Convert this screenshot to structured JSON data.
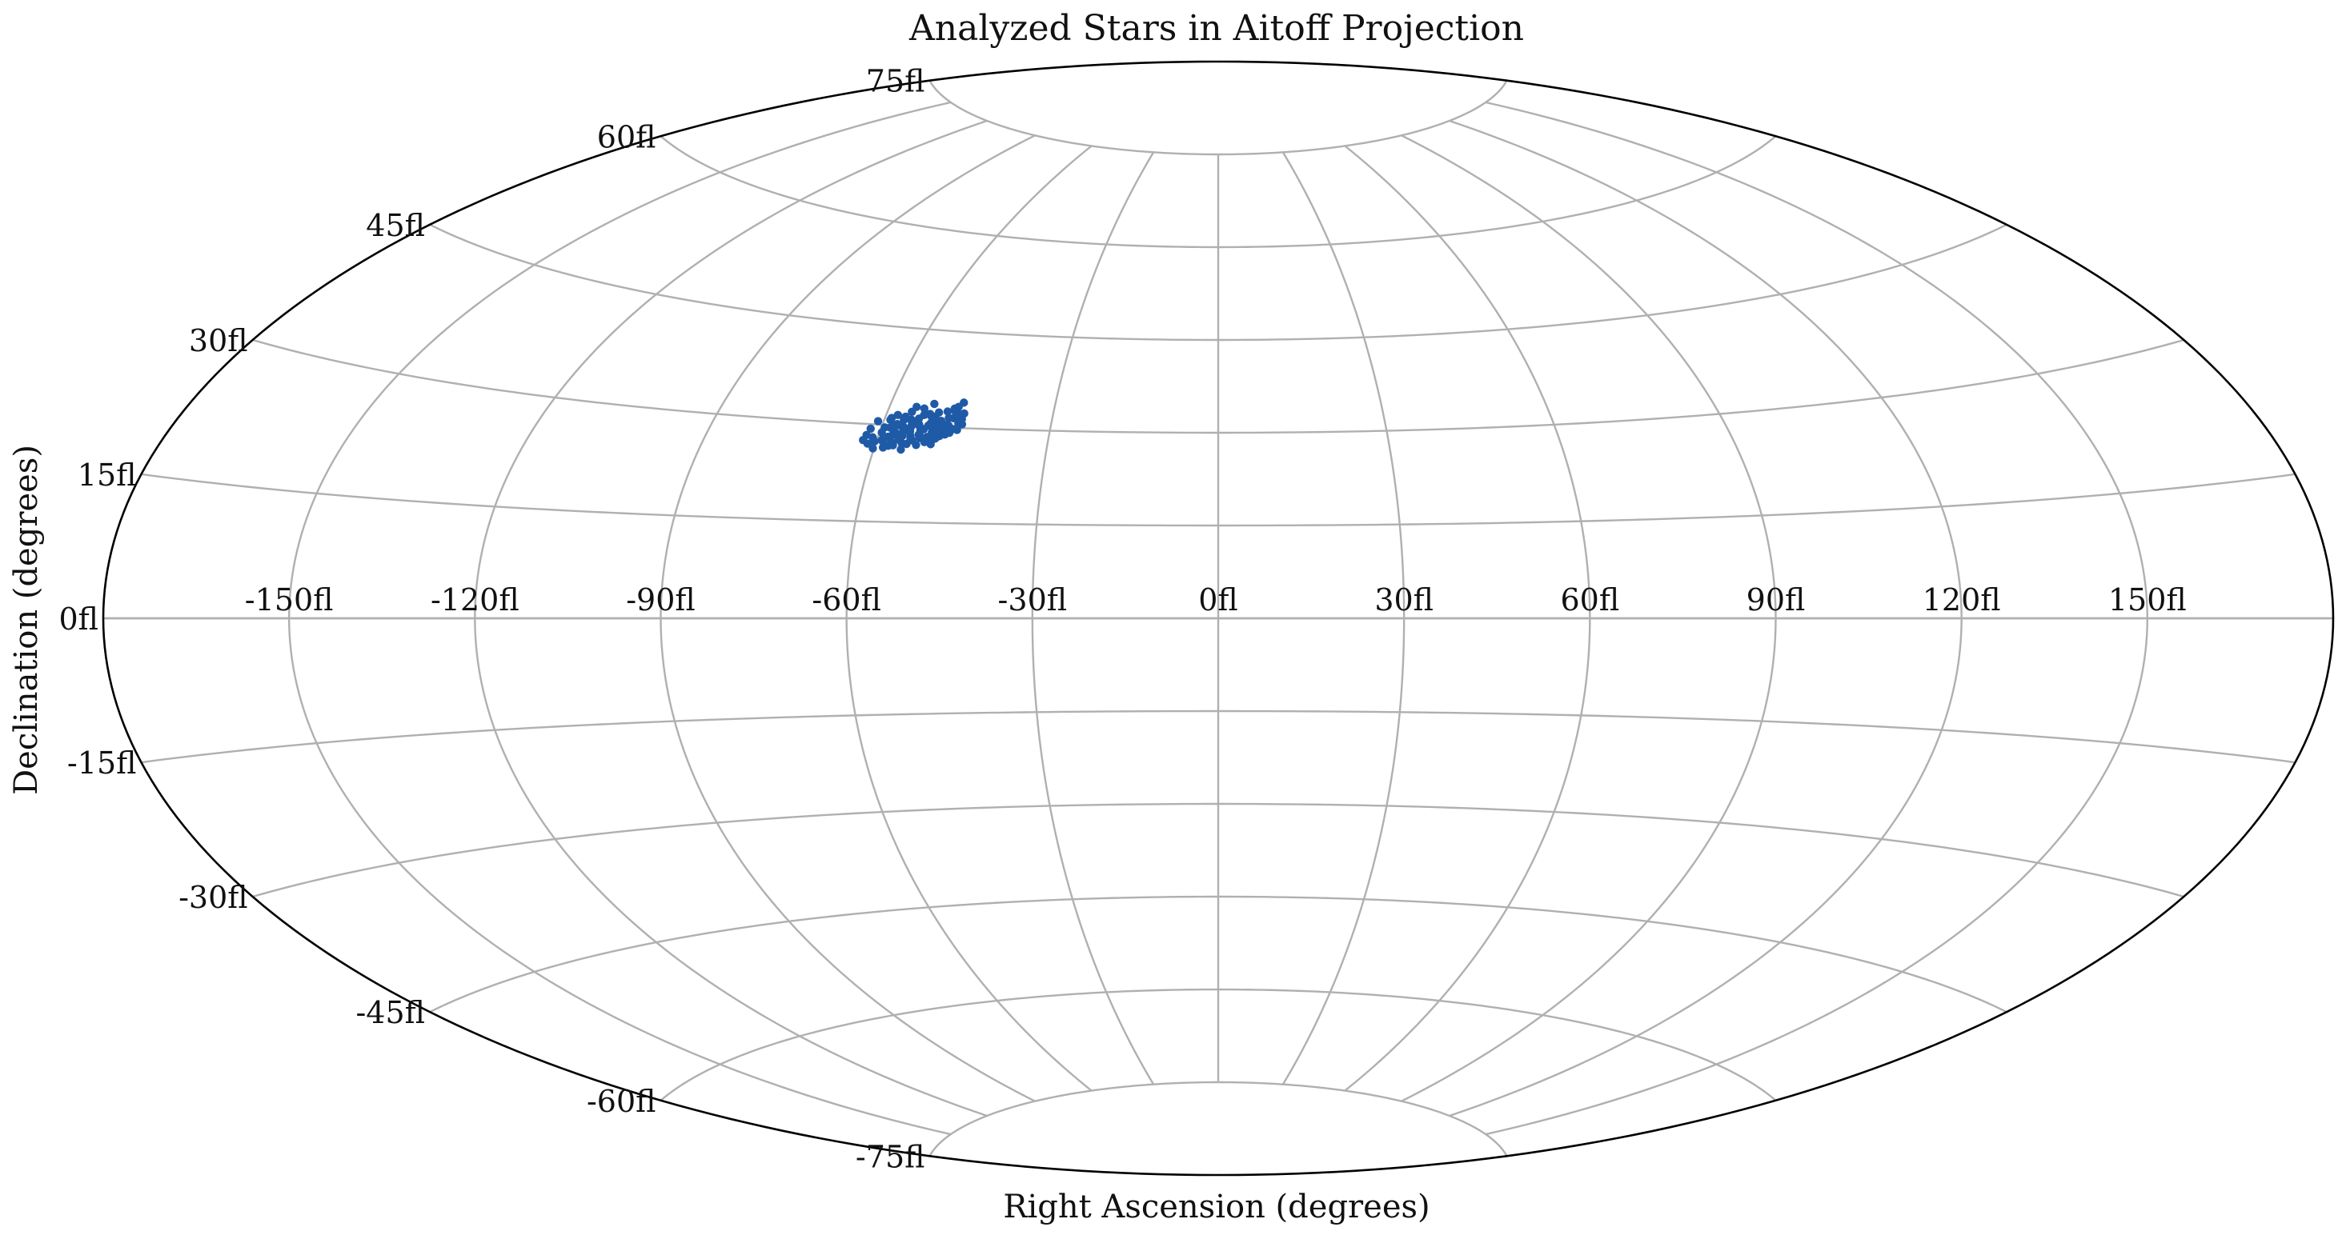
{
  "chart_data": {
    "type": "scatter",
    "projection": "aitoff",
    "title": "Analyzed Stars in Aitoff Projection",
    "xlabel": "Right Ascension (degrees)",
    "ylabel": "Declination (degrees)",
    "grid": true,
    "xlim": [
      -180,
      180
    ],
    "ylim": [
      -90,
      90
    ],
    "x_tick_values": [
      -150,
      -120,
      -90,
      -60,
      -30,
      0,
      30,
      60,
      90,
      120,
      150
    ],
    "x_tick_labels": [
      "-150fl",
      "-120fl",
      "-90fl",
      "-60fl",
      "-30fl",
      "0fl",
      "30fl",
      "60fl",
      "90fl",
      "120fl",
      "150fl"
    ],
    "y_tick_values": [
      -75,
      -60,
      -45,
      -30,
      -15,
      0,
      15,
      30,
      45,
      60,
      75
    ],
    "y_tick_labels": [
      "-75fl",
      "-60fl",
      "-45fl",
      "-30fl",
      "-15fl",
      "0fl",
      "15fl",
      "30fl",
      "45fl",
      "60fl",
      "75fl"
    ],
    "marker_color": "#1f5aa6",
    "series": [
      {
        "x": [
          -62.1,
          -62.4,
          -61.4,
          -61.8,
          -60.9,
          -60.3,
          -61.0,
          -59.4,
          -59.0,
          -58.8,
          -58.2,
          -58.5,
          -57.4,
          -57.2,
          -57.0,
          -56.1,
          -56.4,
          -56.9,
          -55.8,
          -55.3,
          -55.0,
          -55.6,
          -54.7,
          -54.2,
          -54.6,
          -53.9,
          -53.6,
          -53.3,
          -52.8,
          -52.9,
          -52.4,
          -52.1,
          -51.9,
          -51.4,
          -51.6,
          -51.0,
          -50.7,
          -50.9,
          -50.2,
          -50.4,
          -49.8,
          -49.6,
          -49.2,
          -48.9,
          -48.4,
          -48.1,
          -47.8,
          -47.3,
          -47.0,
          -46.6,
          -46.8,
          -46.2,
          -45.9,
          -60.2,
          -59.6,
          -59.1,
          -58.4,
          -57.6,
          -57.9,
          -57.5,
          -56.8,
          -56.3,
          -55.9,
          -55.2,
          -55.5,
          -54.8,
          -54.1,
          -54.4,
          -53.8,
          -53.2,
          -52.9,
          -52.6,
          -51.8,
          -51.3,
          -50.8,
          -50.3,
          -49.7,
          -49.3,
          -48.6,
          -48.2,
          -47.7,
          -47.1,
          -46.5,
          -46.1,
          -58.9,
          -57.8,
          -56.5,
          -55.1,
          -53.5,
          -52.2,
          -50.6,
          -49.0,
          -47.5,
          -57.7,
          -56.0,
          -54.9,
          -53.0,
          -51.5,
          -49.9,
          -48.0
        ],
        "y": [
          28.3,
          27.5,
          27.0,
          29.3,
          28.0,
          27.4,
          30.5,
          29.6,
          27.5,
          31.1,
          28.2,
          26.5,
          30.2,
          28.9,
          27.2,
          29.8,
          31.4,
          26.9,
          28.4,
          26.3,
          30.7,
          32.2,
          29.2,
          28.0,
          27.2,
          31.2,
          32.8,
          30.0,
          28.6,
          27.1,
          29.6,
          33.6,
          31.7,
          28.4,
          27.6,
          30.9,
          32.3,
          29.7,
          28.1,
          27.3,
          31.0,
          29.1,
          32.5,
          30.4,
          28.9,
          33.0,
          31.5,
          29.8,
          32.2,
          30.7,
          34.0,
          31.4,
          30.6,
          26.3,
          28.8,
          27.7,
          29.6,
          27.6,
          31.6,
          28.6,
          30.0,
          27.9,
          29.0,
          31.0,
          27.3,
          29.9,
          30.4,
          28.5,
          27.8,
          31.8,
          29.3,
          28.2,
          30.2,
          31.6,
          29.1,
          30.5,
          29.8,
          28.6,
          31.5,
          30.3,
          29.2,
          31.9,
          29.7,
          32.3,
          30.8,
          29.9,
          30.9,
          33.0,
          30.3,
          32.0,
          31.1,
          30.0,
          33.3,
          26.8,
          27.9,
          29.4,
          28.7,
          30.6,
          28.2,
          32.7
        ]
      }
    ]
  }
}
